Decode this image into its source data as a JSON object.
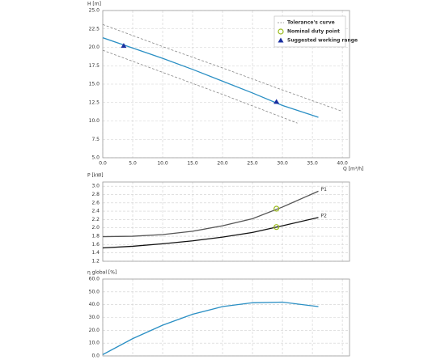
{
  "chart_data": [
    {
      "type": "line",
      "title": "H [m]",
      "x_label": "Q [m³/h]",
      "xlim": [
        0,
        41.2
      ],
      "ylim": [
        5,
        25
      ],
      "grid": true,
      "xticks": [
        {
          "value": 0,
          "label": "0.0"
        },
        {
          "value": 5,
          "label": "5.0"
        },
        {
          "value": 10,
          "label": "10.0"
        },
        {
          "value": 15,
          "label": "15.0"
        },
        {
          "value": 20,
          "label": "20.0"
        },
        {
          "value": 25,
          "label": "25.0"
        },
        {
          "value": 30,
          "label": "30.0"
        },
        {
          "value": 35,
          "label": "35.0"
        },
        {
          "value": 40,
          "label": "40.0"
        }
      ],
      "yticks": [
        {
          "value": 5,
          "label": "5.0"
        },
        7.5,
        {
          "value": 10,
          "label": "10.0"
        },
        12.5,
        {
          "value": 15,
          "label": "15.0"
        },
        17.5,
        {
          "value": 20,
          "label": "20.0"
        },
        22.5,
        {
          "value": 25,
          "label": "25.0"
        }
      ],
      "series": [
        {
          "x": [
            0,
            10,
            20,
            30,
            40
          ],
          "values": [
            23.1,
            20.1,
            17.2,
            14.2,
            11.3
          ],
          "color": "#888888",
          "style": "dashed",
          "marker": "none"
        },
        {
          "x": [
            0,
            10,
            20,
            32.5
          ],
          "values": [
            19.6,
            16.6,
            13.6,
            9.7
          ],
          "color": "#888888",
          "style": "dashed",
          "marker": "none"
        },
        {
          "x": [
            0,
            5,
            10,
            15,
            20,
            25,
            30,
            36
          ],
          "values": [
            21.3,
            19.9,
            18.5,
            17.0,
            15.4,
            13.8,
            12.1,
            10.5
          ],
          "color": "#2a8fc4",
          "style": "solid",
          "marker": "none"
        },
        {
          "x": [
            3.5,
            29
          ],
          "values": [
            20.2,
            12.6
          ],
          "color": "#1a2fa0",
          "style": "none",
          "marker": "triangle"
        }
      ],
      "legend": {
        "position": "upper right",
        "entries": [
          {
            "label": "Tolerance's curve",
            "symbol": "dashed",
            "color": "#888888"
          },
          {
            "label": "Nominal duty point",
            "symbol": "circle",
            "color": "#9bbb1e"
          },
          {
            "label": "Suggested working range",
            "symbol": "triangle",
            "color": "#1a2fa0"
          }
        ]
      }
    },
    {
      "type": "line",
      "title": "P [kW]",
      "xlim": [
        0,
        41.2
      ],
      "ylim": [
        1.2,
        3.1
      ],
      "grid": true,
      "xticks": [
        0,
        5,
        10,
        15,
        20,
        25,
        30,
        35,
        40
      ],
      "yticks": [
        1.2,
        1.4,
        1.6,
        1.8,
        {
          "value": 2,
          "label": "2.0"
        },
        2.2,
        2.4,
        2.6,
        2.8,
        {
          "value": 3,
          "label": "3.0"
        }
      ],
      "series": [
        {
          "name": "P1",
          "x": [
            0,
            5,
            10,
            15,
            20,
            25,
            30,
            36
          ],
          "values": [
            1.79,
            1.8,
            1.84,
            1.92,
            2.05,
            2.22,
            2.5,
            2.88
          ],
          "color": "#555555",
          "style": "solid",
          "marker": "none"
        },
        {
          "name": "P2",
          "x": [
            0,
            5,
            10,
            15,
            20,
            25,
            30,
            36
          ],
          "values": [
            1.52,
            1.56,
            1.62,
            1.69,
            1.78,
            1.89,
            2.05,
            2.25
          ],
          "color": "#111111",
          "style": "solid",
          "marker": "none"
        },
        {
          "x": [
            29,
            29
          ],
          "values": [
            2.46,
            2.02
          ],
          "color": "#9bbb1e",
          "style": "none",
          "marker": "circle"
        }
      ]
    },
    {
      "type": "line",
      "title": "η global [%]",
      "xlim": [
        0,
        41.2
      ],
      "ylim": [
        0,
        60
      ],
      "grid": true,
      "xticks": [
        0,
        5,
        10,
        15,
        20,
        25,
        30,
        35,
        40
      ],
      "yticks": [
        {
          "value": 0,
          "label": "0.0"
        },
        {
          "value": 10,
          "label": "10.0"
        },
        {
          "value": 20,
          "label": "20.0"
        },
        {
          "value": 30,
          "label": "30.0"
        },
        {
          "value": 40,
          "label": "40.0"
        },
        {
          "value": 50,
          "label": "50.0"
        },
        {
          "value": 60,
          "label": "60.0"
        }
      ],
      "series": [
        {
          "x": [
            0,
            5,
            10,
            15,
            20,
            25,
            30,
            36
          ],
          "values": [
            1,
            13.5,
            24,
            32.5,
            38.5,
            41.5,
            42,
            38.5
          ],
          "color": "#2a8fc4",
          "style": "solid",
          "marker": "none"
        }
      ]
    }
  ]
}
